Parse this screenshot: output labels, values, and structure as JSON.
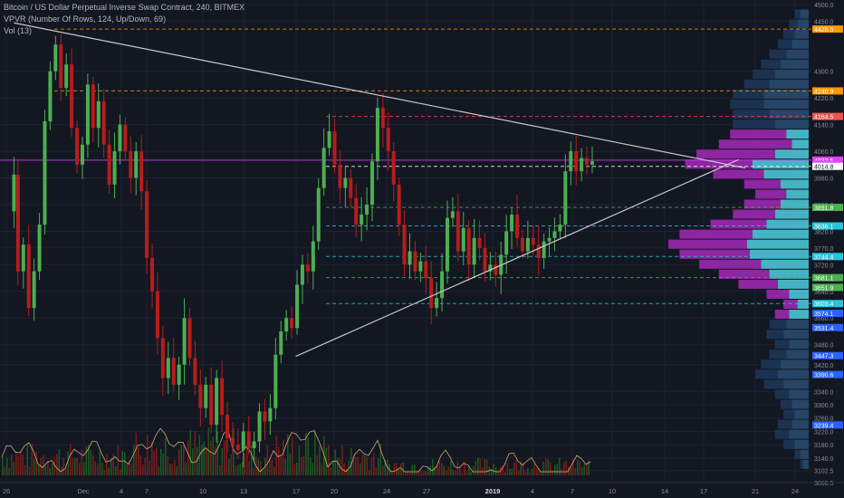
{
  "legend": {
    "title": "Bitcoin / US Dollar Perpetual Inverse Swap Contract, 240, BITMEX",
    "vpvr": "VPVR (Number Of Rows, 124, Up/Down, 69)",
    "vol": "Vol (13)"
  },
  "colors": {
    "background": "#131722",
    "grid": "#1e2230",
    "up": "#26a69a",
    "down": "#ef5350",
    "up_bright": "#4caf50",
    "down_dark": "#b71c1c",
    "vp_up": "#4dd0e1",
    "vp_down": "#9c27b0",
    "vp_up_outside": "#2a4a6e",
    "vp_down_outside": "#1e3557",
    "trendline": "#c8c8c8",
    "volume_ma": "#d4a76a",
    "last_price": "#e040fb"
  },
  "chart_data": {
    "type": "candlestick",
    "title": "Bitcoin / US Dollar Perpetual Inverse Swap Contract, 240, BITMEX",
    "ylim": [
      3066.5,
      4500
    ],
    "y_ticks": [
      4500.0,
      4450.0,
      4300.0,
      4220.0,
      4140.0,
      4060.0,
      3980.0,
      3900.0,
      3820.0,
      3770.0,
      3720.0,
      3640.0,
      3560.0,
      3480.0,
      3420.0,
      3340.0,
      3300.0,
      3260.0,
      3220.0,
      3180.0,
      3140.0,
      3102.5,
      3066.5
    ],
    "x_ticks": [
      "26",
      "Dec",
      "4",
      "7",
      "10",
      "13",
      "17",
      "20",
      "24",
      "27",
      "2019",
      "4",
      "7",
      "10",
      "14",
      "17",
      "21",
      "24"
    ],
    "price_markers": [
      {
        "label": "4426.5",
        "value": 4426.5,
        "color": "#ff9800",
        "line": true,
        "dash": true
      },
      {
        "label": "4240.9",
        "value": 4240.9,
        "color": "#ff9800",
        "line": true,
        "dash": true
      },
      {
        "label": "4164.5",
        "value": 4164.5,
        "color": "#ef5350",
        "line": true,
        "dash": true
      },
      {
        "label": "4033.5",
        "value": 4033.5,
        "color": "#e040fb",
        "line": true,
        "dash": false
      },
      {
        "label": "28:44",
        "value": 4021,
        "color": "#e040fb",
        "line": false,
        "dash": false
      },
      {
        "label": "4014.8",
        "value": 4014.8,
        "color": "#ffffff",
        "line": true,
        "dash": true
      },
      {
        "label": "3891.8",
        "value": 3891.8,
        "color": "#4caf50",
        "line": true,
        "dash": true
      },
      {
        "label": "3836.1",
        "value": 3836.1,
        "color": "#26c6da",
        "line": true,
        "dash": true
      },
      {
        "label": "3744.4",
        "value": 3744.4,
        "color": "#26c6da",
        "line": true,
        "dash": true
      },
      {
        "label": "3681.1",
        "value": 3681.1,
        "color": "#4caf50",
        "line": true,
        "dash": true
      },
      {
        "label": "3651.9",
        "value": 3651.9,
        "color": "#4caf50",
        "line": false,
        "dash": false
      },
      {
        "label": "3603.4",
        "value": 3603.4,
        "color": "#26c6da",
        "line": true,
        "dash": true
      },
      {
        "label": "3574.1",
        "value": 3574.1,
        "color": "#2962ff",
        "line": false,
        "dash": false
      },
      {
        "label": "3531.4",
        "value": 3531.4,
        "color": "#2962ff",
        "line": false,
        "dash": false
      },
      {
        "label": "3447.3",
        "value": 3447.3,
        "color": "#2962ff",
        "line": false,
        "dash": false
      },
      {
        "label": "3390.6",
        "value": 3390.6,
        "color": "#2962ff",
        "line": false,
        "dash": false
      },
      {
        "label": "3239.4",
        "value": 3239.4,
        "color": "#2962ff",
        "line": false,
        "dash": false
      }
    ],
    "trendlines": [
      {
        "from": [
          0.5,
          4445
        ],
        "to": [
          55,
          4010
        ]
      },
      {
        "from": [
          21.5,
          3445
        ],
        "to": [
          54.5,
          4035
        ]
      }
    ],
    "price_path": [
      [
        0,
        3880
      ],
      [
        0.5,
        3990
      ],
      [
        0.8,
        3700
      ],
      [
        1.2,
        3780
      ],
      [
        1.6,
        3590
      ],
      [
        2.0,
        3700
      ],
      [
        2.4,
        3840
      ],
      [
        2.8,
        4150
      ],
      [
        3.2,
        4300
      ],
      [
        3.6,
        4380
      ],
      [
        4.0,
        4250
      ],
      [
        4.4,
        4320
      ],
      [
        4.8,
        4130
      ],
      [
        5.2,
        4020
      ],
      [
        5.6,
        4080
      ],
      [
        6.0,
        4260
      ],
      [
        6.4,
        4130
      ],
      [
        6.8,
        4210
      ],
      [
        7.2,
        4080
      ],
      [
        7.6,
        3960
      ],
      [
        8.0,
        4060
      ],
      [
        8.4,
        4140
      ],
      [
        8.8,
        4060
      ],
      [
        9.2,
        3980
      ],
      [
        9.6,
        4060
      ],
      [
        10.0,
        3940
      ],
      [
        10.4,
        3740
      ],
      [
        10.8,
        3640
      ],
      [
        11.2,
        3500
      ],
      [
        11.6,
        3380
      ],
      [
        12.0,
        3440
      ],
      [
        12.4,
        3360
      ],
      [
        12.8,
        3420
      ],
      [
        13.2,
        3560
      ],
      [
        13.6,
        3440
      ],
      [
        14.0,
        3360
      ],
      [
        14.4,
        3290
      ],
      [
        14.8,
        3360
      ],
      [
        15.2,
        3240
      ],
      [
        15.6,
        3380
      ],
      [
        16.0,
        3270
      ],
      [
        16.4,
        3200
      ],
      [
        16.8,
        3180
      ],
      [
        17.2,
        3165
      ],
      [
        17.6,
        3220
      ],
      [
        18.0,
        3170
      ],
      [
        18.4,
        3190
      ],
      [
        18.8,
        3280
      ],
      [
        19.2,
        3250
      ],
      [
        19.6,
        3290
      ],
      [
        20.0,
        3450
      ],
      [
        20.4,
        3520
      ],
      [
        20.8,
        3560
      ],
      [
        21.2,
        3530
      ],
      [
        21.6,
        3660
      ],
      [
        22.0,
        3720
      ],
      [
        22.4,
        3700
      ],
      [
        22.8,
        3790
      ],
      [
        23.2,
        3950
      ],
      [
        23.6,
        4070
      ],
      [
        24.0,
        4120
      ],
      [
        24.4,
        4020
      ],
      [
        24.8,
        3950
      ],
      [
        25.2,
        3980
      ],
      [
        25.6,
        3920
      ],
      [
        26.0,
        3840
      ],
      [
        26.4,
        3870
      ],
      [
        26.8,
        3900
      ],
      [
        27.2,
        4030
      ],
      [
        27.6,
        4190
      ],
      [
        28.0,
        4130
      ],
      [
        28.4,
        4060
      ],
      [
        28.8,
        3960
      ],
      [
        29.2,
        3840
      ],
      [
        29.6,
        3720
      ],
      [
        30.0,
        3760
      ],
      [
        30.4,
        3700
      ],
      [
        30.8,
        3730
      ],
      [
        31.2,
        3680
      ],
      [
        31.6,
        3590
      ],
      [
        32.0,
        3620
      ],
      [
        32.4,
        3700
      ],
      [
        32.8,
        3860
      ],
      [
        33.2,
        3880
      ],
      [
        33.6,
        3760
      ],
      [
        34.0,
        3830
      ],
      [
        34.4,
        3720
      ],
      [
        34.8,
        3800
      ],
      [
        35.2,
        3770
      ],
      [
        35.6,
        3700
      ],
      [
        36.0,
        3720
      ],
      [
        36.4,
        3690
      ],
      [
        36.8,
        3750
      ],
      [
        37.2,
        3820
      ],
      [
        37.6,
        3870
      ],
      [
        38.0,
        3800
      ],
      [
        38.4,
        3760
      ],
      [
        38.8,
        3800
      ],
      [
        39.2,
        3780
      ],
      [
        39.6,
        3740
      ],
      [
        40.0,
        3790
      ],
      [
        40.4,
        3800
      ],
      [
        40.8,
        3820
      ],
      [
        41.2,
        3840
      ],
      [
        41.6,
        4000
      ],
      [
        42.0,
        4060
      ],
      [
        42.4,
        4000
      ],
      [
        42.8,
        4040
      ],
      [
        43.2,
        4020
      ],
      [
        43.6,
        4030
      ]
    ],
    "volume_profile": {
      "rows_price_from": 3066.5,
      "rows_price_to": 4500,
      "value_area": [
        3570,
        4110
      ],
      "rows": [
        {
          "price": 4470,
          "up": 6,
          "down": 4
        },
        {
          "price": 4440,
          "up": 8,
          "down": 6
        },
        {
          "price": 4410,
          "up": 10,
          "down": 8
        },
        {
          "price": 4380,
          "up": 12,
          "down": 10
        },
        {
          "price": 4350,
          "up": 16,
          "down": 12
        },
        {
          "price": 4320,
          "up": 20,
          "down": 14
        },
        {
          "price": 4290,
          "up": 24,
          "down": 16
        },
        {
          "price": 4260,
          "up": 28,
          "down": 18
        },
        {
          "price": 4230,
          "up": 32,
          "down": 22
        },
        {
          "price": 4200,
          "up": 32,
          "down": 24
        },
        {
          "price": 4170,
          "up": 28,
          "down": 26
        },
        {
          "price": 4140,
          "up": 24,
          "down": 30
        },
        {
          "price": 4110,
          "up": 16,
          "down": 40
        },
        {
          "price": 4080,
          "up": 12,
          "down": 52
        },
        {
          "price": 4050,
          "up": 24,
          "down": 56
        },
        {
          "price": 4020,
          "up": 40,
          "down": 48
        },
        {
          "price": 3990,
          "up": 32,
          "down": 36
        },
        {
          "price": 3960,
          "up": 20,
          "down": 26
        },
        {
          "price": 3930,
          "up": 16,
          "down": 22
        },
        {
          "price": 3900,
          "up": 20,
          "down": 26
        },
        {
          "price": 3870,
          "up": 24,
          "down": 30
        },
        {
          "price": 3840,
          "up": 30,
          "down": 40
        },
        {
          "price": 3810,
          "up": 40,
          "down": 52
        },
        {
          "price": 3780,
          "up": 44,
          "down": 56
        },
        {
          "price": 3750,
          "up": 42,
          "down": 50
        },
        {
          "price": 3720,
          "up": 34,
          "down": 44
        },
        {
          "price": 3690,
          "up": 28,
          "down": 36
        },
        {
          "price": 3660,
          "up": 22,
          "down": 28
        },
        {
          "price": 3630,
          "up": 14,
          "down": 16
        },
        {
          "price": 3600,
          "up": 8,
          "down": 10
        },
        {
          "price": 3570,
          "up": 14,
          "down": 10
        },
        {
          "price": 3540,
          "up": 16,
          "down": 12
        },
        {
          "price": 3510,
          "up": 18,
          "down": 12
        },
        {
          "price": 3480,
          "up": 14,
          "down": 10
        },
        {
          "price": 3450,
          "up": 16,
          "down": 12
        },
        {
          "price": 3420,
          "up": 20,
          "down": 14
        },
        {
          "price": 3390,
          "up": 22,
          "down": 16
        },
        {
          "price": 3360,
          "up": 18,
          "down": 14
        },
        {
          "price": 3330,
          "up": 14,
          "down": 10
        },
        {
          "price": 3300,
          "up": 12,
          "down": 8
        },
        {
          "price": 3270,
          "up": 10,
          "down": 8
        },
        {
          "price": 3240,
          "up": 12,
          "down": 10
        },
        {
          "price": 3210,
          "up": 14,
          "down": 10
        },
        {
          "price": 3180,
          "up": 10,
          "down": 8
        },
        {
          "price": 3150,
          "up": 6,
          "down": 4
        },
        {
          "price": 3120,
          "up": 4,
          "down": 2
        }
      ]
    }
  }
}
